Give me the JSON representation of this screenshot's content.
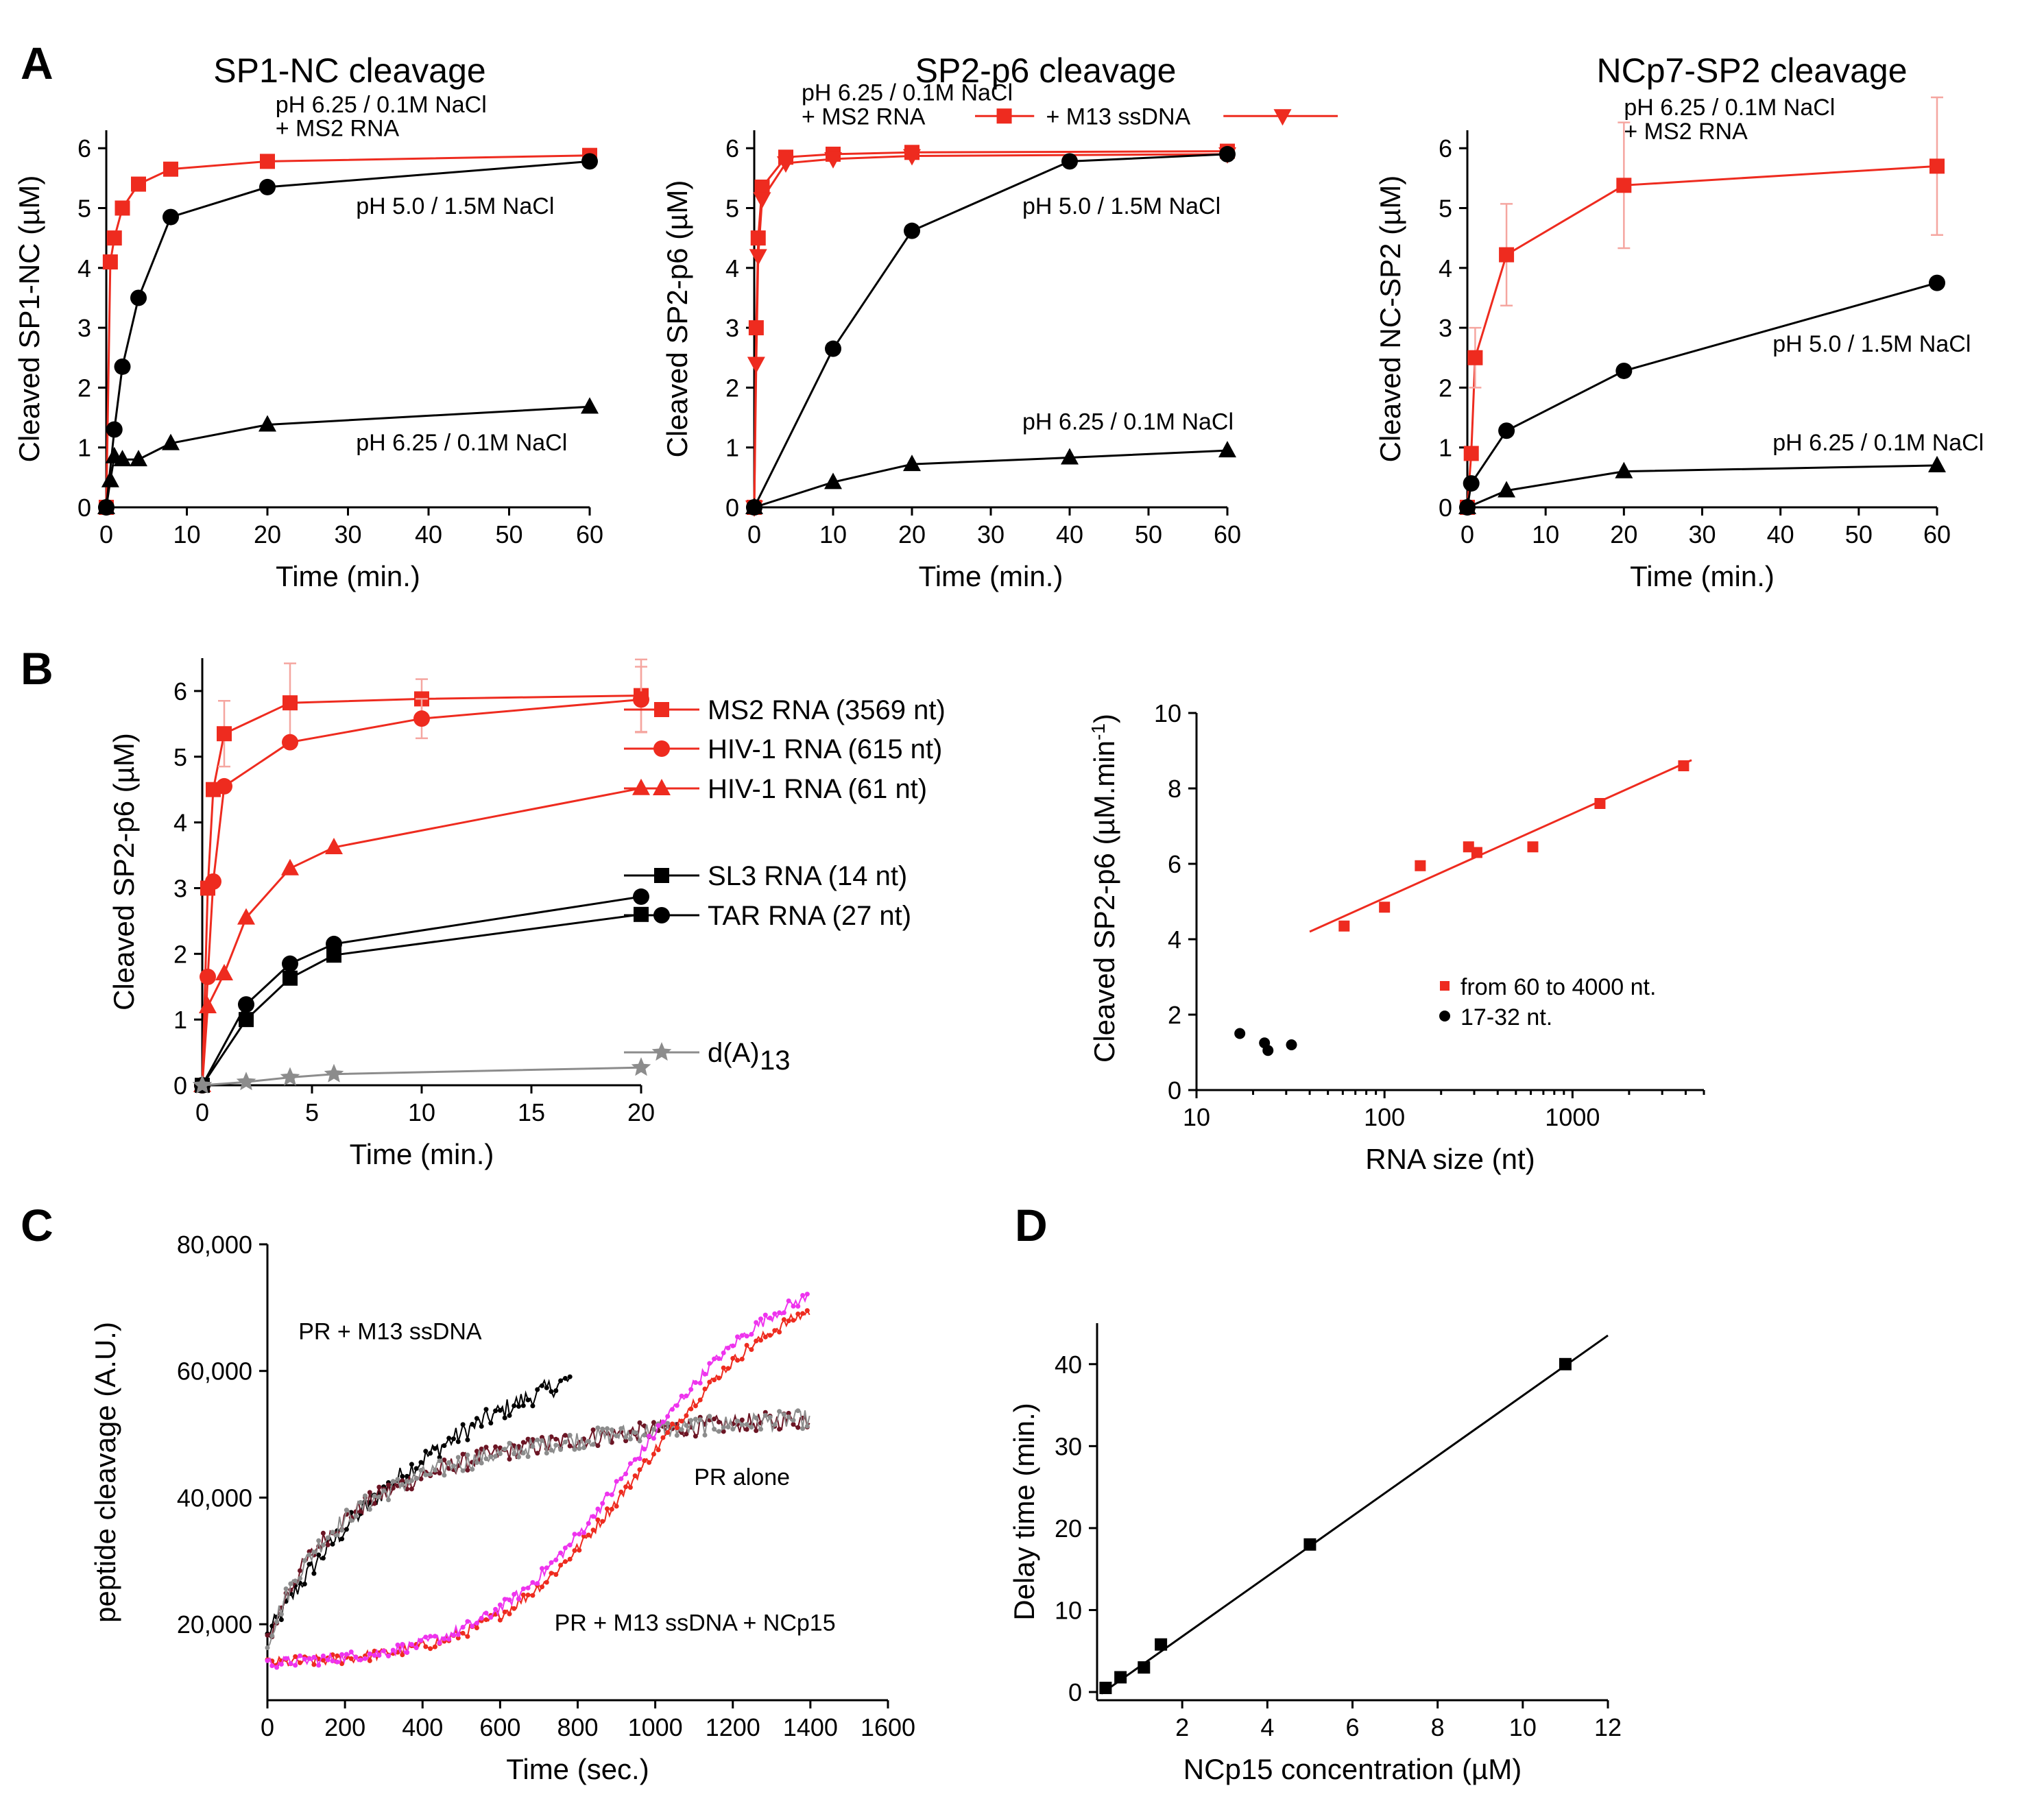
{
  "colors": {
    "red": "#ee2b1f",
    "black": "#000000",
    "grey": "#8c8c8c",
    "err": "#f5a6a0",
    "maroon": "#6b1524",
    "magenta": "#ee33ee"
  },
  "chart_data": [
    {
      "id": "A1",
      "panel_label": "A",
      "type": "line",
      "title": "SP1-NC cleavage",
      "xlabel": "Time (min.)",
      "ylabel": "Cleaved SP1-NC (µM)",
      "xlim": [
        0,
        60
      ],
      "ylim": [
        0,
        6.3
      ],
      "xticks": [
        0,
        10,
        20,
        30,
        40,
        50,
        60
      ],
      "yticks": [
        0,
        1,
        2,
        3,
        4,
        5,
        6
      ],
      "series": [
        {
          "name": "pH 6.25 / 0.1M NaCl + MS2 RNA",
          "color": "#ee2b1f",
          "marker": "square",
          "x": [
            0,
            0.5,
            1,
            2,
            4,
            8,
            20,
            60
          ],
          "y": [
            0,
            4.1,
            4.5,
            5.0,
            5.4,
            5.65,
            5.78,
            5.88
          ]
        },
        {
          "name": "pH 5.0 / 1.5M NaCl",
          "color": "#000000",
          "marker": "circle",
          "x": [
            0,
            1,
            2,
            4,
            8,
            20,
            60
          ],
          "y": [
            0,
            1.3,
            2.35,
            3.5,
            4.85,
            5.35,
            5.78
          ]
        },
        {
          "name": "pH 6.25 / 0.1M NaCl",
          "color": "#000000",
          "marker": "triangle",
          "x": [
            0,
            0.5,
            1,
            2,
            4,
            8,
            20,
            60
          ],
          "y": [
            0,
            0.45,
            0.85,
            0.8,
            0.8,
            1.07,
            1.38,
            1.68
          ]
        }
      ],
      "annotations": [
        {
          "text": "pH 6.25 / 0.1M NaCl",
          "x": 21,
          "y": 6.6
        },
        {
          "text": "+ MS2 RNA",
          "x": 21,
          "y": 6.2
        },
        {
          "text": "pH 5.0 / 1.5M NaCl",
          "x": 31,
          "y": 4.9
        },
        {
          "text": "pH 6.25 / 0.1M NaCl",
          "x": 31,
          "y": 0.95
        }
      ]
    },
    {
      "id": "A2",
      "type": "line",
      "title": "SP2-p6 cleavage",
      "xlabel": "Time (min.)",
      "ylabel": "Cleaved SP2-p6 (µM)",
      "xlim": [
        0,
        60
      ],
      "ylim": [
        0,
        6.3
      ],
      "xticks": [
        0,
        10,
        20,
        30,
        40,
        50,
        60
      ],
      "yticks": [
        0,
        1,
        2,
        3,
        4,
        5,
        6
      ],
      "series": [
        {
          "name": "+ MS2 RNA",
          "color": "#ee2b1f",
          "marker": "square",
          "x": [
            0,
            0.25,
            0.5,
            1,
            4,
            10,
            20,
            60
          ],
          "y": [
            0,
            3.0,
            4.5,
            5.35,
            5.85,
            5.9,
            5.93,
            5.95
          ]
        },
        {
          "name": "+ M13 ssDNA",
          "color": "#ee2b1f",
          "marker": "triangle-down",
          "x": [
            0,
            0.25,
            0.5,
            1,
            4,
            10,
            20,
            60
          ],
          "y": [
            0,
            2.4,
            4.2,
            5.15,
            5.75,
            5.82,
            5.87,
            5.9
          ]
        },
        {
          "name": "pH 5.0 / 1.5M NaCl",
          "color": "#000000",
          "marker": "circle",
          "x": [
            0,
            10,
            20,
            40,
            60
          ],
          "y": [
            0,
            2.65,
            4.62,
            5.78,
            5.9
          ]
        },
        {
          "name": "pH 6.25 / 0.1M NaCl",
          "color": "#000000",
          "marker": "triangle",
          "x": [
            0,
            10,
            20,
            40,
            60
          ],
          "y": [
            0,
            0.42,
            0.72,
            0.83,
            0.95
          ]
        }
      ],
      "annotations": [
        {
          "text": "pH 6.25 / 0.1M NaCl",
          "x": 6,
          "y": 6.8
        },
        {
          "text": "+ MS2 RNA",
          "x": 6,
          "y": 6.4
        },
        {
          "text": "+ M13 ssDNA",
          "x": 37,
          "y": 6.4
        },
        {
          "text": "pH 5.0 / 1.5M NaCl",
          "x": 34,
          "y": 4.9
        },
        {
          "text": "pH 6.25 / 0.1M NaCl",
          "x": 34,
          "y": 1.3
        }
      ]
    },
    {
      "id": "A3",
      "type": "line",
      "title": "NCp7-SP2 cleavage",
      "xlabel": "Time (min.)",
      "ylabel": "Cleaved NC-SP2 (µM)",
      "xlim": [
        0,
        60
      ],
      "ylim": [
        0,
        6.3
      ],
      "xticks": [
        0,
        10,
        20,
        30,
        40,
        50,
        60
      ],
      "yticks": [
        0,
        1,
        2,
        3,
        4,
        5,
        6
      ],
      "series": [
        {
          "name": "pH 6.25 / 0.1M NaCl + MS2 RNA",
          "color": "#ee2b1f",
          "marker": "square",
          "x": [
            0,
            0.5,
            1,
            5,
            20,
            60
          ],
          "y": [
            0,
            0.9,
            2.5,
            4.22,
            5.38,
            5.7
          ],
          "err": [
            0,
            0,
            0.5,
            0.85,
            1.05,
            1.15
          ]
        },
        {
          "name": "pH 5.0 / 1.5M NaCl",
          "color": "#000000",
          "marker": "circle",
          "x": [
            0,
            0.5,
            5,
            20,
            60
          ],
          "y": [
            0,
            0.4,
            1.28,
            2.28,
            3.75
          ]
        },
        {
          "name": "pH 6.25 / 0.1M NaCl",
          "color": "#000000",
          "marker": "triangle",
          "x": [
            0,
            5,
            20,
            60
          ],
          "y": [
            0,
            0.28,
            0.6,
            0.7
          ]
        }
      ],
      "annotations": [
        {
          "text": "pH 6.25 / 0.1M NaCl",
          "x": 20,
          "y": 6.55
        },
        {
          "text": "+ MS2 RNA",
          "x": 20,
          "y": 6.15
        },
        {
          "text": "pH 5.0 / 1.5M NaCl",
          "x": 39,
          "y": 2.6
        },
        {
          "text": "pH 6.25 / 0.1M NaCl",
          "x": 39,
          "y": 0.95
        }
      ]
    },
    {
      "id": "B1",
      "panel_label": "B",
      "type": "line",
      "title": "",
      "xlabel": "Time (min.)",
      "ylabel": "Cleaved SP2-p6 (µM)",
      "xlim": [
        0,
        20
      ],
      "ylim": [
        0,
        6.5
      ],
      "xticks": [
        0,
        5,
        10,
        15,
        20
      ],
      "yticks": [
        0,
        1,
        2,
        3,
        4,
        5,
        6
      ],
      "series": [
        {
          "name": "MS2 RNA (3569 nt)",
          "color": "#ee2b1f",
          "marker": "square",
          "x": [
            0,
            0.25,
            0.5,
            1,
            4,
            10,
            20
          ],
          "y": [
            0,
            3.0,
            4.5,
            5.35,
            5.82,
            5.88,
            5.93
          ],
          "err": [
            0,
            0,
            0,
            0.5,
            0.6,
            0.3,
            0.55
          ]
        },
        {
          "name": "HIV-1 RNA (615 nt)",
          "color": "#ee2b1f",
          "marker": "circle",
          "x": [
            0,
            0.25,
            0.5,
            1,
            4,
            10,
            20
          ],
          "y": [
            0,
            1.65,
            3.1,
            4.55,
            5.22,
            5.58,
            5.87
          ],
          "err": [
            0,
            0,
            0,
            0,
            0,
            0.3,
            0.5
          ]
        },
        {
          "name": "HIV-1 RNA (61 nt)",
          "color": "#ee2b1f",
          "marker": "triangle",
          "x": [
            0,
            0.25,
            1,
            2,
            4,
            6,
            20
          ],
          "y": [
            0,
            1.2,
            1.7,
            2.55,
            3.3,
            3.62,
            4.52
          ]
        },
        {
          "name": "SL3 RNA (14 nt)",
          "color": "#000000",
          "marker": "square",
          "x": [
            0,
            2,
            4,
            6,
            20
          ],
          "y": [
            0,
            1.0,
            1.63,
            1.98,
            2.6
          ]
        },
        {
          "name": "TAR RNA (27 nt)",
          "color": "#000000",
          "marker": "circle",
          "x": [
            0,
            2,
            4,
            6,
            20
          ],
          "y": [
            0,
            1.23,
            1.85,
            2.15,
            2.87
          ]
        },
        {
          "name": "d(A)13",
          "color": "#8c8c8c",
          "marker": "star",
          "x": [
            0,
            2,
            4,
            6,
            20
          ],
          "y": [
            0,
            0.05,
            0.12,
            0.17,
            0.27
          ]
        }
      ],
      "legend": [
        "MS2 RNA (3569 nt)",
        "HIV-1 RNA (615 nt)",
        "HIV-1 RNA (61 nt)",
        "SL3 RNA (14 nt)",
        "TAR RNA (27 nt)",
        "d(A)"
      ],
      "legend_sub": "13"
    },
    {
      "id": "B2",
      "type": "scatter",
      "title": "",
      "xlabel": "RNA size (nt)",
      "ylabel": "Cleaved SP2-p6 (µM.min",
      "ylabel_sup": "-1",
      "ylabel_close": ")",
      "xscale": "log",
      "xlim": [
        10,
        5000
      ],
      "ylim": [
        0,
        10
      ],
      "xticks": [
        10,
        100,
        1000
      ],
      "xtick_labels": [
        "10",
        "100",
        "1000"
      ],
      "yticks": [
        0,
        2,
        4,
        6,
        8,
        10
      ],
      "series": [
        {
          "name": "from 60 to 4000 nt.",
          "color": "#ee2b1f",
          "marker": "square",
          "x": [
            61,
            100,
            155,
            280,
            310,
            615,
            1400,
            3900
          ],
          "y": [
            4.35,
            4.85,
            5.95,
            6.45,
            6.3,
            6.45,
            7.6,
            8.6
          ]
        },
        {
          "name": "17-32 nt.",
          "color": "#000000",
          "marker": "circle",
          "x": [
            17,
            23,
            24,
            32
          ],
          "y": [
            1.5,
            1.25,
            1.05,
            1.2
          ]
        }
      ],
      "fit_line": {
        "x": [
          40,
          4300
        ],
        "y": [
          4.2,
          8.75
        ]
      },
      "legend": [
        "from 60 to 4000 nt.",
        "17-32 nt."
      ]
    },
    {
      "id": "C",
      "panel_label": "C",
      "type": "scatter",
      "title": "",
      "xlabel": "Time (sec.)",
      "ylabel": "peptide cleavage (A.U.)",
      "xlim": [
        0,
        1600
      ],
      "ylim": [
        8000,
        80000
      ],
      "xticks": [
        0,
        200,
        400,
        600,
        800,
        1000,
        1200,
        1400,
        1600
      ],
      "yticks": [
        20000,
        40000,
        60000,
        80000
      ],
      "ytick_labels": [
        "20,000",
        "40,000",
        "60,000",
        "80,000"
      ],
      "series": [
        {
          "name": "PR + M13 ssDNA",
          "color": "#000000",
          "model": "hyperbolic",
          "x_range": [
            0,
            780
          ],
          "ymin": 18000,
          "ymax": 95000,
          "k": 700,
          "noise": 1600
        },
        {
          "name": "PR alone (replicate 1)",
          "color": "#6b1524",
          "model": "hyperbolic",
          "x_range": [
            0,
            1400
          ],
          "ymin": 17000,
          "ymax": 58000,
          "k": 220,
          "noise": 1500
        },
        {
          "name": "PR alone (replicate 2)",
          "color": "#8c8c8c",
          "model": "hyperbolic",
          "x_range": [
            0,
            1400
          ],
          "ymin": 17000,
          "ymax": 58000,
          "k": 220,
          "noise": 1500
        },
        {
          "name": "PR + M13 ssDNA + NCp15 (replicate 1)",
          "color": "#ee2b1f",
          "model": "sigmoid",
          "x_range": [
            0,
            1400
          ],
          "ymin": 13500,
          "ymax": 75000,
          "x0": 960,
          "w": 190,
          "noise": 900
        },
        {
          "name": "PR + M13 ssDNA + NCp15 (replicate 2)",
          "color": "#ee33ee",
          "model": "sigmoid",
          "x_range": [
            0,
            1400
          ],
          "ymin": 13500,
          "ymax": 77000,
          "x0": 940,
          "w": 190,
          "noise": 900
        }
      ],
      "annotations": [
        {
          "text": "PR + M13 ssDNA",
          "x": 80,
          "y": 65000
        },
        {
          "text": "PR alone",
          "x": 1100,
          "y": 42000
        },
        {
          "text": "PR + M13 ssDNA + NCp15",
          "x": 740,
          "y": 19000
        }
      ]
    },
    {
      "id": "D",
      "panel_label": "D",
      "type": "scatter",
      "title": "",
      "xlabel": "NCp15 concentration (µM)",
      "ylabel": "Delay time (min.)",
      "xlim": [
        0,
        12
      ],
      "ylim": [
        -1,
        45
      ],
      "xticks": [
        2,
        4,
        6,
        8,
        10,
        12
      ],
      "yticks": [
        0,
        10,
        20,
        30,
        40
      ],
      "series": [
        {
          "name": "Delay time",
          "color": "#000000",
          "marker": "square",
          "x": [
            0.2,
            0.55,
            1.1,
            1.5,
            5.0,
            11.0
          ],
          "y": [
            0.5,
            1.8,
            3.0,
            5.8,
            18.0,
            40.0
          ]
        }
      ],
      "fit_line": {
        "x": [
          0.1,
          12
        ],
        "y": [
          -0.2,
          43.5
        ]
      }
    }
  ]
}
